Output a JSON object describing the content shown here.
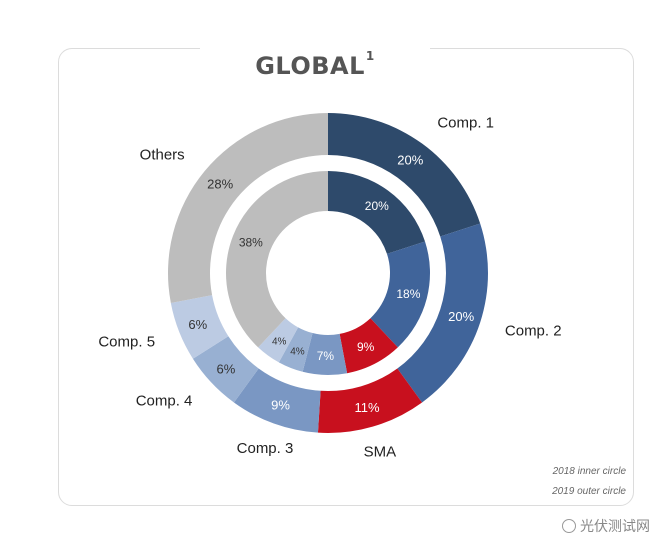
{
  "title": "GLOBAL",
  "title_superscript": "1",
  "notes": {
    "inner": "2018 inner circle",
    "outer": "2019 outer circle"
  },
  "watermark": "光伏测试网",
  "chart_data": {
    "type": "donut",
    "categories": [
      "Comp. 1",
      "Comp. 2",
      "SMA",
      "Comp. 3",
      "Comp. 4",
      "Comp. 5",
      "Others"
    ],
    "series": [
      {
        "name": "2019",
        "ring": "outer",
        "values": [
          20,
          20,
          11,
          9,
          6,
          6,
          28
        ],
        "labels": [
          "20%",
          "20%",
          "11%",
          "9%",
          "6%",
          "6%",
          "28%"
        ]
      },
      {
        "name": "2018",
        "ring": "inner",
        "values": [
          20,
          18,
          9,
          7,
          4,
          4,
          38
        ],
        "labels": [
          "20%",
          "18%",
          "9%",
          "7%",
          "4%",
          "4%",
          "38%"
        ]
      }
    ],
    "colors": [
      "#2e4a6b",
      "#40649a",
      "#c8101e",
      "#7a97c3",
      "#98b0d2",
      "#bccbe3",
      "#bdbdbd"
    ],
    "label_colors": [
      "#ffffff",
      "#ffffff",
      "#ffffff",
      "#ffffff",
      "#333333",
      "#333333",
      "#333333"
    ],
    "legend": "none"
  }
}
